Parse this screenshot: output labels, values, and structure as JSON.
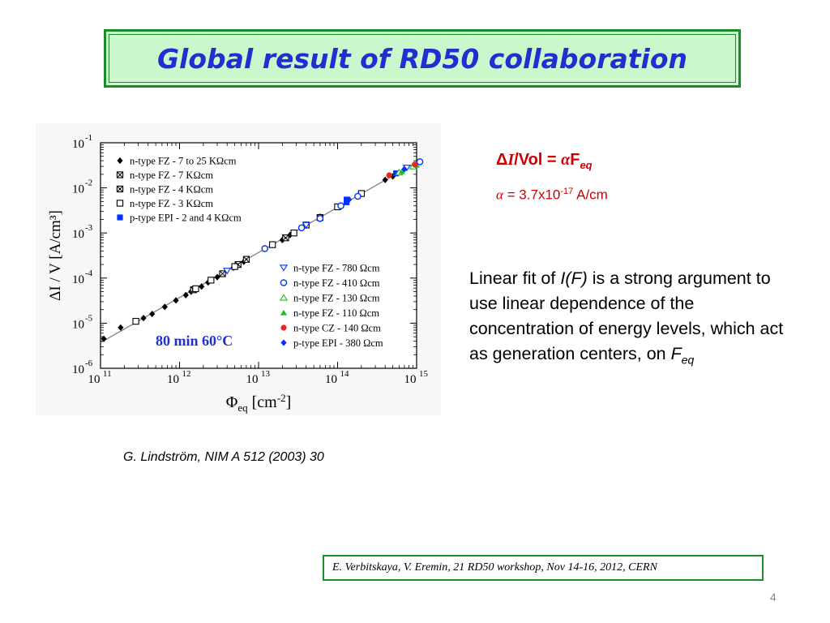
{
  "slide": {
    "title": "Global result of RD50 collaboration",
    "formula": {
      "delta": "Δ",
      "I": "I",
      "vol": "/Vol = ",
      "alpha": "α",
      "F": "F",
      "sub": "eq"
    },
    "alpha_value": {
      "alpha": "α",
      "text": " = 3.7x10",
      "exp": "-17",
      "unit": " A/cm"
    },
    "explanation": {
      "p1": "Linear fit of ",
      "italic": "I(F)",
      "p2": " is a strong argument to use linear dependence of the concentration of energy levels, which act as generation centers, on ",
      "F": "F",
      "sub": "eq"
    },
    "citation": "G. Lindström, NIM A 512 (2003) 30",
    "footer": "E. Verbitskaya, V. Eremin, 21 RD50 workshop, Nov 14-16, 2012, CERN",
    "page_number": "4"
  },
  "chart_data": {
    "type": "scatter",
    "xscale": "log",
    "yscale": "log",
    "xlim": [
      100000000000.0,
      1000000000000000.0
    ],
    "ylim": [
      1e-06,
      0.1
    ],
    "xlabel": {
      "main": "Φ",
      "sub": "eq",
      "rest": " [cm",
      "sup": "-2",
      "end": "]"
    },
    "ylabel": "ΔI / V   [A/cm³]",
    "xticks": [
      {
        "value": 100000000000.0,
        "base": "10",
        "exp": "11"
      },
      {
        "value": 1000000000000.0,
        "base": "10",
        "exp": "12"
      },
      {
        "value": 10000000000000.0,
        "base": "10",
        "exp": "13"
      },
      {
        "value": 100000000000000.0,
        "base": "10",
        "exp": "14"
      },
      {
        "value": 1000000000000000.0,
        "base": "10",
        "exp": "15"
      }
    ],
    "yticks": [
      {
        "value": 1e-06,
        "base": "10",
        "exp": "-6"
      },
      {
        "value": 1e-05,
        "base": "10",
        "exp": "-5"
      },
      {
        "value": 0.0001,
        "base": "10",
        "exp": "-4"
      },
      {
        "value": 0.001,
        "base": "10",
        "exp": "-3"
      },
      {
        "value": 0.01,
        "base": "10",
        "exp": "-2"
      },
      {
        "value": 0.1,
        "base": "10",
        "exp": "-1"
      }
    ],
    "annotation": "80 min 60°C",
    "fit_line": {
      "x": [
        100000000000.0,
        1000000000000000.0
      ],
      "y": [
        3.7e-06,
        0.037
      ]
    },
    "legend_left": [
      {
        "label": "n-type FZ - 7 to 25 KΩcm",
        "marker": "diamond-filled",
        "color": "#000000"
      },
      {
        "label": "n-type FZ - 7 KΩcm",
        "marker": "square-cross",
        "color": "#000000"
      },
      {
        "label": "n-type FZ - 4 KΩcm",
        "marker": "square-x",
        "color": "#000000"
      },
      {
        "label": "n-type FZ - 3 KΩcm",
        "marker": "square-open",
        "color": "#000000"
      },
      {
        "label": "p-type EPI - 2 and 4 KΩcm",
        "marker": "square-filled",
        "color": "#0033ff"
      }
    ],
    "legend_right": [
      {
        "label": "n-type FZ - 780 Ωcm",
        "marker": "triangle-down-open",
        "color": "#0033ff"
      },
      {
        "label": "n-type FZ - 410 Ωcm",
        "marker": "circle-open",
        "color": "#0033ff"
      },
      {
        "label": "n-type FZ - 130 Ωcm",
        "marker": "triangle-up-open",
        "color": "#22bb22"
      },
      {
        "label": "n-type FZ - 110 Ωcm",
        "marker": "triangle-up-filled",
        "color": "#22bb22"
      },
      {
        "label": "n-type CZ - 140 Ωcm",
        "marker": "circle-filled",
        "color": "#ee2222"
      },
      {
        "label": "p-type EPI - 380 Ωcm",
        "marker": "diamond-filled",
        "color": "#0033ff"
      }
    ],
    "series": [
      {
        "name": "n-type FZ - 7 to 25 KΩcm",
        "marker": "diamond-filled",
        "color": "#000000",
        "points": [
          [
            110000000000.0,
            4.5e-06
          ],
          [
            180000000000.0,
            8e-06
          ],
          [
            350000000000.0,
            1.3e-05
          ],
          [
            450000000000.0,
            1.6e-05
          ],
          [
            650000000000.0,
            2.3e-05
          ],
          [
            900000000000.0,
            3.2e-05
          ],
          [
            1200000000000.0,
            4.2e-05
          ],
          [
            1400000000000.0,
            5e-05
          ],
          [
            1600000000000.0,
            5.8e-05
          ],
          [
            1900000000000.0,
            6.5e-05
          ],
          [
            2300000000000.0,
            8e-05
          ],
          [
            3000000000000.0,
            0.000105
          ],
          [
            4800000000000.0,
            0.00017
          ],
          [
            6500000000000.0,
            0.00023
          ],
          [
            20000000000000.0,
            0.0007
          ],
          [
            25000000000000.0,
            0.0009
          ],
          [
            60000000000000.0,
            0.0023
          ],
          [
            400000000000000.0,
            0.015
          ],
          [
            500000000000000.0,
            0.018
          ]
        ]
      },
      {
        "name": "n-type FZ - 7 KΩcm",
        "marker": "square-cross",
        "color": "#000000",
        "points": [
          [
            1500000000000.0,
            5.5e-05
          ],
          [
            3500000000000.0,
            0.000125
          ],
          [
            60000000000000.0,
            0.0022
          ]
        ]
      },
      {
        "name": "n-type FZ - 4 KΩcm",
        "marker": "square-x",
        "color": "#000000",
        "points": [
          [
            5500000000000.0,
            0.0002
          ],
          [
            7000000000000.0,
            0.00026
          ],
          [
            22000000000000.0,
            0.00078
          ]
        ]
      },
      {
        "name": "n-type FZ - 3 KΩcm",
        "marker": "square-open",
        "color": "#000000",
        "points": [
          [
            280000000000.0,
            1.1e-05
          ],
          [
            1600000000000.0,
            5.8e-05
          ],
          [
            2500000000000.0,
            9e-05
          ],
          [
            5000000000000.0,
            0.00018
          ],
          [
            15000000000000.0,
            0.00055
          ],
          [
            28000000000000.0,
            0.001
          ],
          [
            40000000000000.0,
            0.0015
          ],
          [
            100000000000000.0,
            0.0038
          ],
          [
            200000000000000.0,
            0.0075
          ]
        ]
      },
      {
        "name": "p-type EPI - 2 and 4 KΩcm",
        "marker": "square-filled",
        "color": "#0033ff",
        "points": [
          [
            130000000000000.0,
            0.0048
          ],
          [
            130000000000000.0,
            0.0055
          ],
          [
            550000000000000.0,
            0.021
          ]
        ]
      },
      {
        "name": "n-type FZ - 780 Ωcm",
        "marker": "triangle-down-open",
        "color": "#0033ff",
        "points": [
          [
            4000000000000.0,
            0.000145
          ],
          [
            40000000000000.0,
            0.0015
          ],
          [
            750000000000000.0,
            0.028
          ]
        ]
      },
      {
        "name": "n-type FZ - 410 Ωcm",
        "marker": "circle-open",
        "color": "#0033ff",
        "points": [
          [
            12000000000000.0,
            0.00045
          ],
          [
            35000000000000.0,
            0.0013
          ],
          [
            60000000000000.0,
            0.0021
          ],
          [
            110000000000000.0,
            0.004
          ],
          [
            180000000000000.0,
            0.0065
          ],
          [
            1100000000000000.0,
            0.038
          ]
        ]
      },
      {
        "name": "n-type FZ - 130 Ωcm",
        "marker": "triangle-up-open",
        "color": "#22bb22",
        "points": [
          [
            600000000000000.0,
            0.022
          ],
          [
            900000000000000.0,
            0.03
          ]
        ]
      },
      {
        "name": "n-type FZ - 110 Ωcm",
        "marker": "triangle-up-filled",
        "color": "#22bb22",
        "points": [
          [
            650000000000000.0,
            0.023
          ],
          [
            1000000000000000.0,
            0.032
          ]
        ]
      },
      {
        "name": "n-type CZ - 140 Ωcm",
        "marker": "circle-filled",
        "color": "#ee2222",
        "points": [
          [
            450000000000000.0,
            0.019
          ],
          [
            950000000000000.0,
            0.033
          ]
        ]
      },
      {
        "name": "p-type EPI - 380 Ωcm",
        "marker": "diamond-filled",
        "color": "#0033ff",
        "points": [
          [
            140000000000000.0,
            0.0055
          ],
          [
            700000000000000.0,
            0.026
          ]
        ]
      }
    ]
  }
}
